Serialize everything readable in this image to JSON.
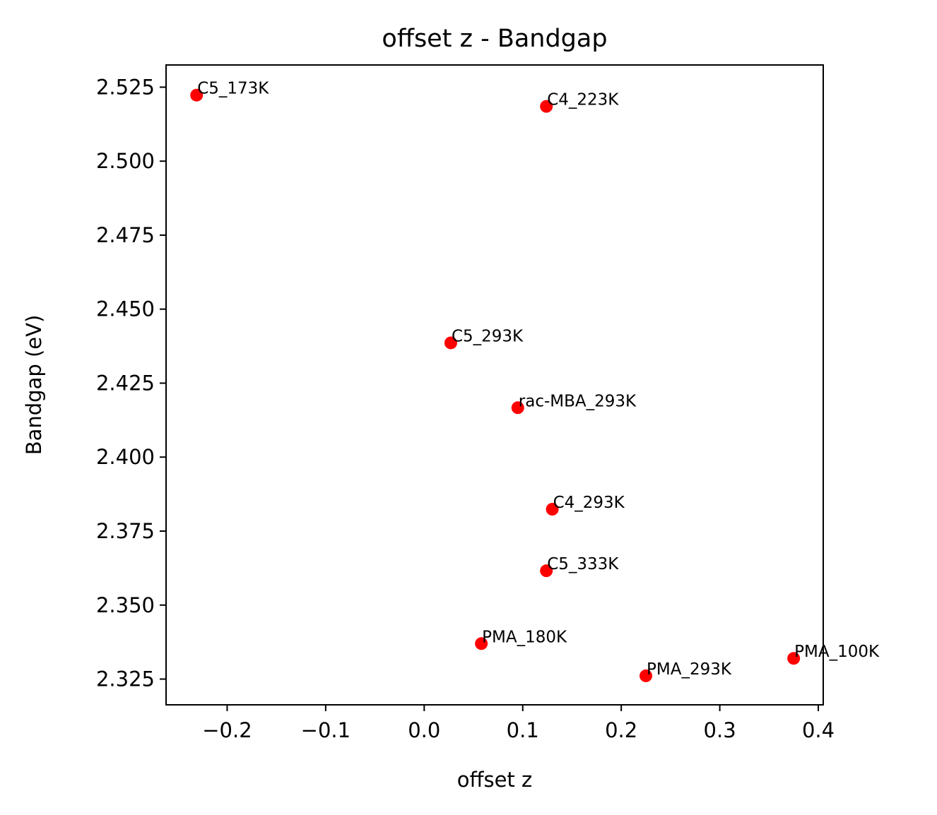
{
  "chart_data": {
    "type": "scatter",
    "title": "offset z - Bandgap",
    "xlabel": "offset z",
    "ylabel": "Bandgap (eV)",
    "xlim": [
      -0.262,
      0.405
    ],
    "ylim": [
      2.3163,
      2.5325
    ],
    "xticks": [
      -0.2,
      -0.1,
      0.0,
      0.1,
      0.2,
      0.3,
      0.4
    ],
    "xtick_labels": [
      "−0.2",
      "−0.1",
      "0.0",
      "0.1",
      "0.2",
      "0.3",
      "0.4"
    ],
    "yticks": [
      2.325,
      2.35,
      2.375,
      2.4,
      2.425,
      2.45,
      2.475,
      2.5,
      2.525
    ],
    "ytick_labels": [
      "2.325",
      "2.350",
      "2.375",
      "2.400",
      "2.425",
      "2.450",
      "2.475",
      "2.500",
      "2.525"
    ],
    "marker_color": "#ff0000",
    "grid": false,
    "points": [
      {
        "label": "C5_173K",
        "x": -0.231,
        "y": 2.5223
      },
      {
        "label": "C4_223K",
        "x": 0.124,
        "y": 2.5185
      },
      {
        "label": "C5_293K",
        "x": 0.027,
        "y": 2.4386
      },
      {
        "label": "rac-MBA_293K",
        "x": 0.095,
        "y": 2.4167
      },
      {
        "label": "C4_293K",
        "x": 0.13,
        "y": 2.3824
      },
      {
        "label": "C5_333K",
        "x": 0.124,
        "y": 2.3616
      },
      {
        "label": "PMA_180K",
        "x": 0.058,
        "y": 2.337
      },
      {
        "label": "PMA_293K",
        "x": 0.225,
        "y": 2.3261
      },
      {
        "label": "PMA_100K",
        "x": 0.375,
        "y": 2.332
      }
    ]
  }
}
